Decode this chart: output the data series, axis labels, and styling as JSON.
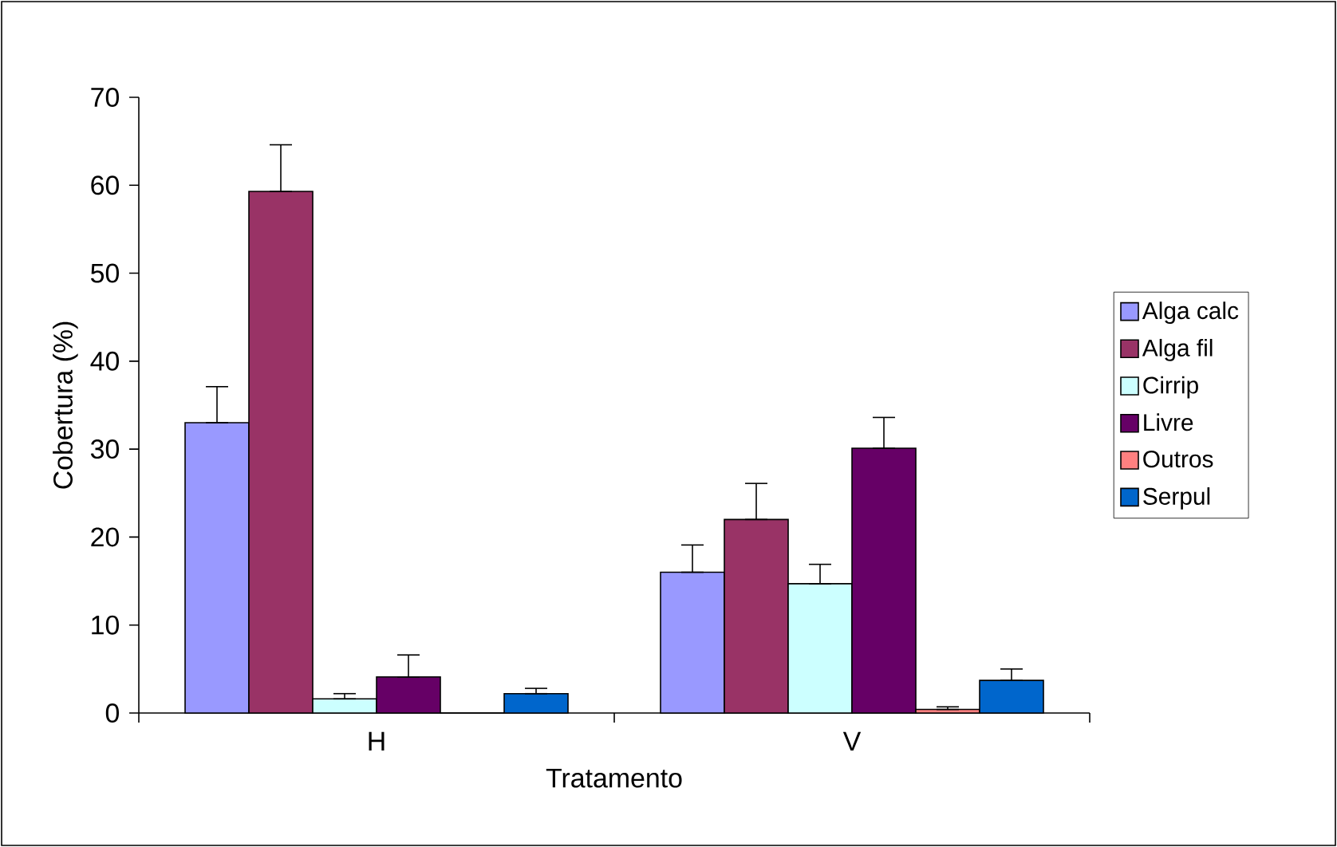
{
  "chart_data": {
    "type": "bar",
    "xlabel": "Tratamento",
    "ylabel": "Cobertura (%)",
    "categories": [
      "H",
      "V"
    ],
    "series": [
      {
        "name": "Alga calc",
        "color": "#9999ff",
        "values": [
          33.0,
          16.0
        ],
        "errors": [
          [
            33.0,
            37.1
          ],
          [
            16.0,
            19.1
          ]
        ]
      },
      {
        "name": "Alga fil",
        "color": "#993366",
        "values": [
          59.3,
          22.0
        ],
        "errors": [
          [
            59.3,
            64.6
          ],
          [
            22.0,
            26.1
          ]
        ]
      },
      {
        "name": "Cirrip",
        "color": "#ccffff",
        "values": [
          1.6,
          14.7
        ],
        "errors": [
          [
            1.6,
            2.2
          ],
          [
            14.7,
            16.9
          ]
        ]
      },
      {
        "name": "Livre",
        "color": "#660066",
        "values": [
          4.1,
          30.1
        ],
        "errors": [
          [
            4.1,
            6.6
          ],
          [
            30.1,
            33.6
          ]
        ]
      },
      {
        "name": "Outros",
        "color": "#ff8080",
        "values": [
          0,
          0.4
        ],
        "errors": [
          null,
          [
            0.4,
            0.7
          ]
        ]
      },
      {
        "name": "Serpul",
        "color": "#0066cc",
        "values": [
          2.2,
          3.7
        ],
        "errors": [
          [
            2.2,
            2.8
          ],
          [
            3.7,
            5.0
          ]
        ]
      }
    ],
    "ylim": [
      0,
      70
    ],
    "yticks": [
      0,
      10,
      20,
      30,
      40,
      50,
      60,
      70
    ],
    "grid": false,
    "legend": "right"
  }
}
